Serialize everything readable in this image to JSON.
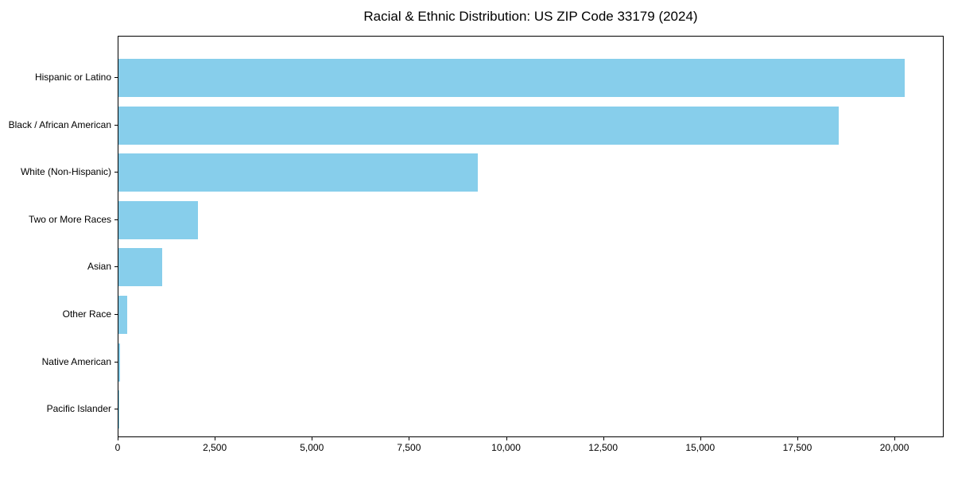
{
  "figure": {
    "background_color": "#ffffff",
    "frame_color": "#000000"
  },
  "chart_data": {
    "type": "bar",
    "orientation": "horizontal",
    "title": "Racial & Ethnic Distribution: US ZIP Code 33179 (2024)",
    "categories": [
      "Hispanic or Latino",
      "Black / African American",
      "White (Non-Hispanic)",
      "Two or More Races",
      "Asian",
      "Other Race",
      "Native American",
      "Pacific Islander"
    ],
    "values": [
      20250,
      18550,
      9250,
      2050,
      1120,
      225,
      40,
      15
    ],
    "xlabel": "",
    "ylabel": "",
    "xlim": [
      0,
      21268
    ],
    "xtick_values": [
      0,
      2500,
      5000,
      7500,
      10000,
      12500,
      15000,
      17500,
      20000
    ],
    "xtick_labels": [
      "0",
      "2,500",
      "5,000",
      "7,500",
      "10,000",
      "12,500",
      "15,000",
      "17,500",
      "20,000"
    ],
    "bar_color": "#87CEEB",
    "grid": false,
    "legend": "none"
  }
}
